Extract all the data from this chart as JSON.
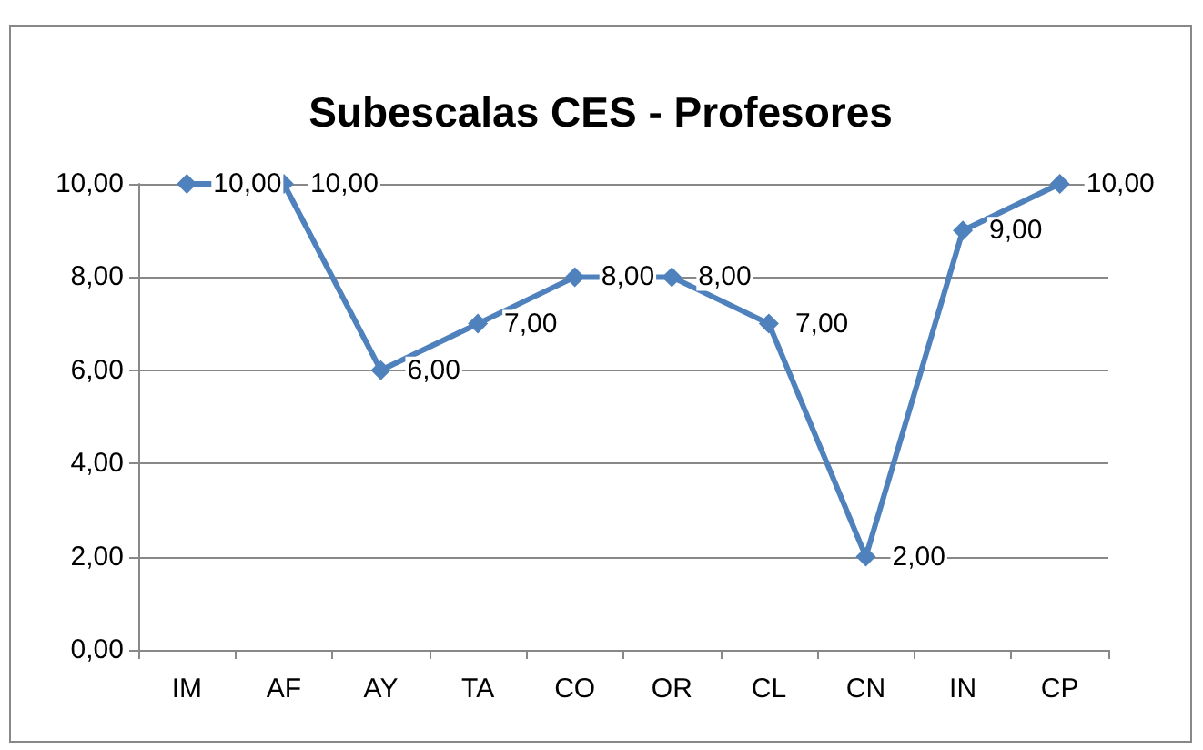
{
  "chart_data": {
    "type": "line",
    "title": "Subescalas CES - Profesores",
    "categories": [
      "IM",
      "AF",
      "AY",
      "TA",
      "CO",
      "OR",
      "CL",
      "CN",
      "IN",
      "CP"
    ],
    "series": [
      {
        "color": "#4f81bd",
        "values": [
          10,
          10,
          6,
          7,
          8,
          8,
          7,
          2,
          9,
          10
        ],
        "value_labels": [
          "10,00",
          "10,00",
          "6,00",
          "7,00",
          "8,00",
          "8,00",
          "7,00",
          "2,00",
          "9,00",
          "10,00"
        ]
      }
    ],
    "ylim": [
      0,
      10
    ],
    "yticks": [
      {
        "value": 0,
        "label": "0,00"
      },
      {
        "value": 2,
        "label": "2,00"
      },
      {
        "value": 4,
        "label": "4,00"
      },
      {
        "value": 6,
        "label": "6,00"
      },
      {
        "value": 8,
        "label": "8,00"
      },
      {
        "value": 10,
        "label": "10,00"
      }
    ],
    "grid": "y",
    "marker": "diamond",
    "line_style": "solid"
  }
}
